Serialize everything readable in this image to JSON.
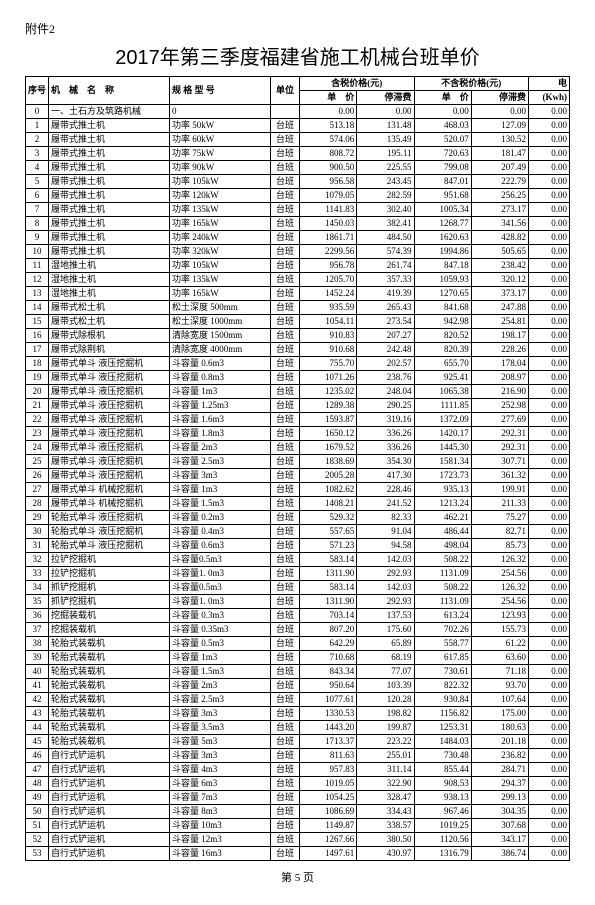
{
  "attachment": "附件2",
  "title": "2017年第三季度福建省施工机械台班单价",
  "footer": "第 5 页",
  "headers": {
    "seq": "序号",
    "name": "机　械　名　称",
    "spec": "规 格 型 号",
    "unit": "单位",
    "tax_group": "含税价格(元)",
    "notax_group": "不含税价格(元)",
    "price": "单　价",
    "idle": "停滞费",
    "elec": "电",
    "elec_unit": "(Kwh)"
  },
  "rows": [
    {
      "seq": "0",
      "name": "一、土石方及筑路机械",
      "spec": "0",
      "unit": "",
      "p1": "0.00",
      "p2": "0.00",
      "p3": "0.00",
      "p4": "0.00",
      "elec": "0.00",
      "cat": true
    },
    {
      "seq": "1",
      "name": "履带式推土机",
      "spec": "功率 50kW",
      "unit": "台班",
      "p1": "513.18",
      "p2": "131.48",
      "p3": "468.03",
      "p4": "127.09",
      "elec": "0.00"
    },
    {
      "seq": "2",
      "name": "履带式推土机",
      "spec": "功率 60kW",
      "unit": "台班",
      "p1": "574.06",
      "p2": "135.49",
      "p3": "520.07",
      "p4": "130.52",
      "elec": "0.00"
    },
    {
      "seq": "3",
      "name": "履带式推土机",
      "spec": "功率 75kW",
      "unit": "台班",
      "p1": "808.72",
      "p2": "195.11",
      "p3": "720.63",
      "p4": "181.47",
      "elec": "0.00"
    },
    {
      "seq": "4",
      "name": "履带式推土机",
      "spec": "功率 90kW",
      "unit": "台班",
      "p1": "900.50",
      "p2": "225.55",
      "p3": "799.08",
      "p4": "207.49",
      "elec": "0.00"
    },
    {
      "seq": "5",
      "name": "履带式推土机",
      "spec": "功率 105kW",
      "unit": "台班",
      "p1": "956.58",
      "p2": "243.45",
      "p3": "847.01",
      "p4": "222.79",
      "elec": "0.00"
    },
    {
      "seq": "6",
      "name": "履带式推土机",
      "spec": "功率 120kW",
      "unit": "台班",
      "p1": "1079.05",
      "p2": "282.59",
      "p3": "951.68",
      "p4": "256.25",
      "elec": "0.00"
    },
    {
      "seq": "7",
      "name": "履带式推土机",
      "spec": "功率 135kW",
      "unit": "台班",
      "p1": "1141.83",
      "p2": "302.40",
      "p3": "1005.34",
      "p4": "273.17",
      "elec": "0.00"
    },
    {
      "seq": "8",
      "name": "履带式推土机",
      "spec": "功率 165kW",
      "unit": "台班",
      "p1": "1450.03",
      "p2": "382.41",
      "p3": "1268.77",
      "p4": "341.56",
      "elec": "0.00"
    },
    {
      "seq": "9",
      "name": "履带式推土机",
      "spec": "功率 240kW",
      "unit": "台班",
      "p1": "1861.71",
      "p2": "484.50",
      "p3": "1620.63",
      "p4": "428.82",
      "elec": "0.00"
    },
    {
      "seq": "10",
      "name": "履带式推土机",
      "spec": "功率 320kW",
      "unit": "台班",
      "p1": "2299.56",
      "p2": "574.39",
      "p3": "1994.86",
      "p4": "505.65",
      "elec": "0.00"
    },
    {
      "seq": "11",
      "name": "湿地推土机",
      "spec": "功率 105kW",
      "unit": "台班",
      "p1": "956.78",
      "p2": "261.74",
      "p3": "847.18",
      "p4": "238.42",
      "elec": "0.00"
    },
    {
      "seq": "12",
      "name": "湿地推土机",
      "spec": "功率 135kW",
      "unit": "台班",
      "p1": "1205.70",
      "p2": "357.33",
      "p3": "1059.93",
      "p4": "320.12",
      "elec": "0.00"
    },
    {
      "seq": "13",
      "name": "湿地推土机",
      "spec": "功率 165kW",
      "unit": "台班",
      "p1": "1452.24",
      "p2": "419.39",
      "p3": "1270.65",
      "p4": "373.17",
      "elec": "0.00"
    },
    {
      "seq": "14",
      "name": "履带式松土机",
      "spec": "松土深度 500mm",
      "unit": "台班",
      "p1": "935.59",
      "p2": "265.43",
      "p3": "841.68",
      "p4": "247.88",
      "elec": "0.00"
    },
    {
      "seq": "15",
      "name": "履带式松土机",
      "spec": "松土深度 1000mm",
      "unit": "台班",
      "p1": "1054.11",
      "p2": "273.54",
      "p3": "942.98",
      "p4": "254.81",
      "elec": "0.00"
    },
    {
      "seq": "16",
      "name": "履带式除根机",
      "spec": "清除宽度 1500mm",
      "unit": "台班",
      "p1": "910.83",
      "p2": "207.27",
      "p3": "820.52",
      "p4": "198.17",
      "elec": "0.00"
    },
    {
      "seq": "17",
      "name": "履带式除荆机",
      "spec": "清除宽度 4000mm",
      "unit": "台班",
      "p1": "910.68",
      "p2": "242.48",
      "p3": "820.39",
      "p4": "228.26",
      "elec": "0.00"
    },
    {
      "seq": "18",
      "name": "履带式单斗 液压挖掘机",
      "spec": "斗容量 0.6m3",
      "unit": "台班",
      "p1": "755.70",
      "p2": "202.57",
      "p3": "655.70",
      "p4": "178.04",
      "elec": "0.00"
    },
    {
      "seq": "19",
      "name": "履带式单斗 液压挖掘机",
      "spec": "斗容量 0.8m3",
      "unit": "台班",
      "p1": "1071.26",
      "p2": "238.76",
      "p3": "925.41",
      "p4": "208.97",
      "elec": "0.00"
    },
    {
      "seq": "20",
      "name": "履带式单斗 液压挖掘机",
      "spec": "斗容量 1m3",
      "unit": "台班",
      "p1": "1235.02",
      "p2": "248.04",
      "p3": "1065.38",
      "p4": "216.90",
      "elec": "0.00"
    },
    {
      "seq": "21",
      "name": "履带式单斗 液压挖掘机",
      "spec": "斗容量 1.25m3",
      "unit": "台班",
      "p1": "1289.38",
      "p2": "290.25",
      "p3": "1111.85",
      "p4": "252.98",
      "elec": "0.00"
    },
    {
      "seq": "22",
      "name": "履带式单斗 液压挖掘机",
      "spec": "斗容量 1.6m3",
      "unit": "台班",
      "p1": "1593.87",
      "p2": "319.16",
      "p3": "1372.09",
      "p4": "277.69",
      "elec": "0.00"
    },
    {
      "seq": "23",
      "name": "履带式单斗 液压挖掘机",
      "spec": "斗容量 1.8m3",
      "unit": "台班",
      "p1": "1650.12",
      "p2": "336.26",
      "p3": "1420.17",
      "p4": "292.31",
      "elec": "0.00"
    },
    {
      "seq": "24",
      "name": "履带式单斗 液压挖掘机",
      "spec": "斗容量 2m3",
      "unit": "台班",
      "p1": "1679.52",
      "p2": "336.26",
      "p3": "1445.30",
      "p4": "292.31",
      "elec": "0.00"
    },
    {
      "seq": "25",
      "name": "履带式单斗 液压挖掘机",
      "spec": "斗容量 2.5m3",
      "unit": "台班",
      "p1": "1838.69",
      "p2": "354.30",
      "p3": "1581.34",
      "p4": "307.71",
      "elec": "0.00"
    },
    {
      "seq": "26",
      "name": "履带式单斗 液压挖掘机",
      "spec": "斗容量 3m3",
      "unit": "台班",
      "p1": "2005.28",
      "p2": "417.30",
      "p3": "1723.73",
      "p4": "361.32",
      "elec": "0.00"
    },
    {
      "seq": "27",
      "name": "履带式单斗 机械挖掘机",
      "spec": "斗容量 1m3",
      "unit": "台班",
      "p1": "1082.62",
      "p2": "228.46",
      "p3": "935.13",
      "p4": "199.91",
      "elec": "0.00"
    },
    {
      "seq": "28",
      "name": "履带式单斗 机械挖掘机",
      "spec": "斗容量 1.5m3",
      "unit": "台班",
      "p1": "1408.21",
      "p2": "241.52",
      "p3": "1213.24",
      "p4": "211.33",
      "elec": "0.00"
    },
    {
      "seq": "29",
      "name": "轮胎式单斗 液压挖掘机",
      "spec": "斗容量 0.2m3",
      "unit": "台班",
      "p1": "529.32",
      "p2": "82.33",
      "p3": "462.21",
      "p4": "75.27",
      "elec": "0.00"
    },
    {
      "seq": "30",
      "name": "轮胎式单斗 液压挖掘机",
      "spec": "斗容量 0.4m3",
      "unit": "台班",
      "p1": "557.65",
      "p2": "91.04",
      "p3": "486.44",
      "p4": "82.71",
      "elec": "0.00"
    },
    {
      "seq": "31",
      "name": "轮胎式单斗 液压挖掘机",
      "spec": "斗容量 0.6m3",
      "unit": "台班",
      "p1": "571.23",
      "p2": "94.58",
      "p3": "498.04",
      "p4": "85.73",
      "elec": "0.00"
    },
    {
      "seq": "32",
      "name": "拉铲挖掘机",
      "spec": "斗容量0.5m3",
      "unit": "台班",
      "p1": "583.14",
      "p2": "142.03",
      "p3": "508.22",
      "p4": "126.32",
      "elec": "0.00"
    },
    {
      "seq": "33",
      "name": "拉铲挖掘机",
      "spec": "斗容量1. 0m3",
      "unit": "台班",
      "p1": "1311.90",
      "p2": "292.93",
      "p3": "1131.09",
      "p4": "254.56",
      "elec": "0.00"
    },
    {
      "seq": "34",
      "name": "抓铲挖掘机",
      "spec": "斗容量0.5m3",
      "unit": "台班",
      "p1": "583.14",
      "p2": "142.03",
      "p3": "508.22",
      "p4": "126.32",
      "elec": "0.00"
    },
    {
      "seq": "35",
      "name": "抓铲挖掘机",
      "spec": "斗容量1. 0m3",
      "unit": "台班",
      "p1": "1311.90",
      "p2": "292.93",
      "p3": "1131.09",
      "p4": "254.56",
      "elec": "0.00"
    },
    {
      "seq": "36",
      "name": "挖掘装载机",
      "spec": "斗容量 0.3m3",
      "unit": "台班",
      "p1": "703.14",
      "p2": "137.53",
      "p3": "613.24",
      "p4": "123.93",
      "elec": "0.00"
    },
    {
      "seq": "37",
      "name": "挖掘装载机",
      "spec": "斗容量 0.35m3",
      "unit": "台班",
      "p1": "807.20",
      "p2": "175.60",
      "p3": "702.26",
      "p4": "155.73",
      "elec": "0.00"
    },
    {
      "seq": "38",
      "name": "轮胎式装载机",
      "spec": "斗容量 0.5m3",
      "unit": "台班",
      "p1": "642.29",
      "p2": "65.89",
      "p3": "558.77",
      "p4": "61.22",
      "elec": "0.00"
    },
    {
      "seq": "39",
      "name": "轮胎式装载机",
      "spec": "斗容量 1m3",
      "unit": "台班",
      "p1": "710.68",
      "p2": "68.19",
      "p3": "617.85",
      "p4": "63.60",
      "elec": "0.00"
    },
    {
      "seq": "40",
      "name": "轮胎式装载机",
      "spec": "斗容量 1.5m3",
      "unit": "台班",
      "p1": "843.34",
      "p2": "77.07",
      "p3": "730.61",
      "p4": "71.18",
      "elec": "0.00"
    },
    {
      "seq": "41",
      "name": "轮胎式装载机",
      "spec": "斗容量 2m3",
      "unit": "台班",
      "p1": "950.64",
      "p2": "103.39",
      "p3": "822.32",
      "p4": "93.70",
      "elec": "0.00"
    },
    {
      "seq": "42",
      "name": "轮胎式装载机",
      "spec": "斗容量 2.5m3",
      "unit": "台班",
      "p1": "1077.61",
      "p2": "120.28",
      "p3": "930.84",
      "p4": "107.64",
      "elec": "0.00"
    },
    {
      "seq": "43",
      "name": "轮胎式装载机",
      "spec": "斗容量 3m3",
      "unit": "台班",
      "p1": "1330.53",
      "p2": "198.82",
      "p3": "1156.82",
      "p4": "175.00",
      "elec": "0.00"
    },
    {
      "seq": "44",
      "name": "轮胎式装载机",
      "spec": "斗容量 3.5m3",
      "unit": "台班",
      "p1": "1443.20",
      "p2": "199.87",
      "p3": "1253.31",
      "p4": "180.63",
      "elec": "0.00"
    },
    {
      "seq": "45",
      "name": "轮胎式装载机",
      "spec": "斗容量 5m3",
      "unit": "台班",
      "p1": "1713.37",
      "p2": "223.22",
      "p3": "1484.03",
      "p4": "201.18",
      "elec": "0.00"
    },
    {
      "seq": "46",
      "name": "自行式铲运机",
      "spec": "斗容量 3m3",
      "unit": "台班",
      "p1": "811.63",
      "p2": "255.01",
      "p3": "730.48",
      "p4": "236.82",
      "elec": "0.00"
    },
    {
      "seq": "47",
      "name": "自行式铲运机",
      "spec": "斗容量 4m3",
      "unit": "台班",
      "p1": "957.83",
      "p2": "311.14",
      "p3": "855.44",
      "p4": "284.71",
      "elec": "0.00"
    },
    {
      "seq": "48",
      "name": "自行式铲运机",
      "spec": "斗容量 6m3",
      "unit": "台班",
      "p1": "1019.05",
      "p2": "322.90",
      "p3": "908.53",
      "p4": "294.37",
      "elec": "0.00"
    },
    {
      "seq": "49",
      "name": "自行式铲运机",
      "spec": "斗容量 7m3",
      "unit": "台班",
      "p1": "1054.25",
      "p2": "328.47",
      "p3": "938.13",
      "p4": "299.13",
      "elec": "0.00"
    },
    {
      "seq": "50",
      "name": "自行式铲运机",
      "spec": "斗容量 8m3",
      "unit": "台班",
      "p1": "1086.69",
      "p2": "334.43",
      "p3": "967.46",
      "p4": "304.35",
      "elec": "0.00"
    },
    {
      "seq": "51",
      "name": "自行式铲运机",
      "spec": "斗容量 10m3",
      "unit": "台班",
      "p1": "1149.87",
      "p2": "338.57",
      "p3": "1019.25",
      "p4": "307.68",
      "elec": "0.00"
    },
    {
      "seq": "52",
      "name": "自行式铲运机",
      "spec": "斗容量 12m3",
      "unit": "台班",
      "p1": "1267.66",
      "p2": "380.50",
      "p3": "1120.56",
      "p4": "343.17",
      "elec": "0.00"
    },
    {
      "seq": "53",
      "name": "自行式铲运机",
      "spec": "斗容量 16m3",
      "unit": "台班",
      "p1": "1497.61",
      "p2": "430.97",
      "p3": "1316.79",
      "p4": "386.74",
      "elec": "0.00"
    }
  ]
}
